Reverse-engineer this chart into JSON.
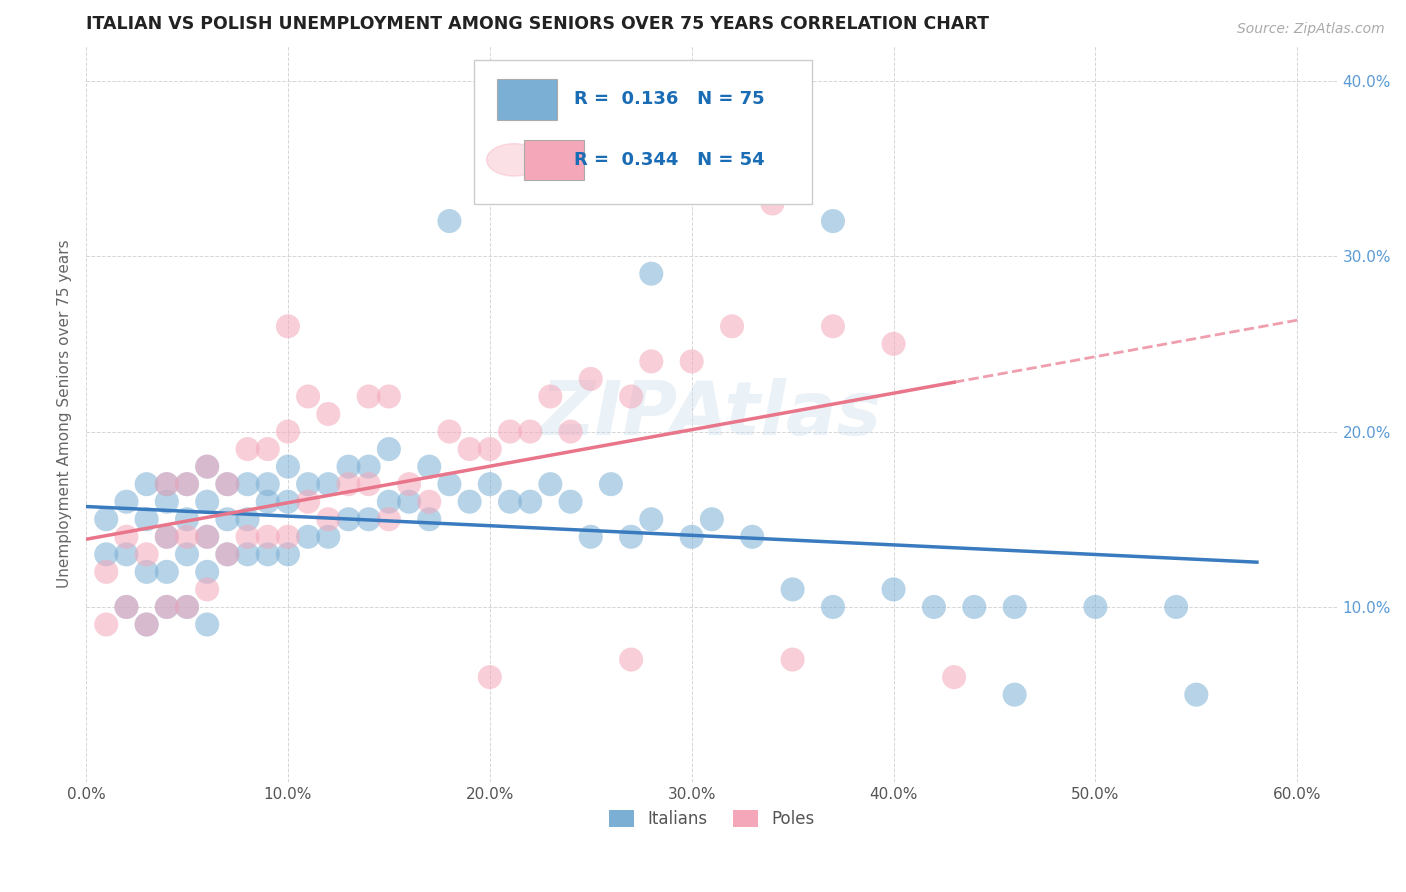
{
  "title": "ITALIAN VS POLISH UNEMPLOYMENT AMONG SENIORS OVER 75 YEARS CORRELATION CHART",
  "source": "Source: ZipAtlas.com",
  "ylabel": "Unemployment Among Seniors over 75 years",
  "xlim": [
    0.0,
    0.62
  ],
  "ylim": [
    0.0,
    0.42
  ],
  "xticks": [
    0.0,
    0.1,
    0.2,
    0.3,
    0.4,
    0.5,
    0.6
  ],
  "xtick_labels": [
    "0.0%",
    "10.0%",
    "20.0%",
    "30.0%",
    "40.0%",
    "50.0%",
    "60.0%"
  ],
  "yticks": [
    0.1,
    0.2,
    0.3,
    0.4
  ],
  "ytick_labels": [
    "10.0%",
    "20.0%",
    "30.0%",
    "40.0%"
  ],
  "italian_color": "#7bafd4",
  "polish_color": "#f4a7b9",
  "italian_line_color": "#3a7bbf",
  "polish_line_color": "#e8758a",
  "italian_R": 0.136,
  "italian_N": 75,
  "polish_R": 0.344,
  "polish_N": 54,
  "background_color": "#ffffff",
  "grid_color": "#cccccc",
  "ytick_color": "#5b9bd5",
  "italian_x": [
    0.01,
    0.01,
    0.02,
    0.02,
    0.02,
    0.03,
    0.03,
    0.03,
    0.03,
    0.04,
    0.04,
    0.04,
    0.04,
    0.04,
    0.05,
    0.05,
    0.05,
    0.05,
    0.06,
    0.06,
    0.06,
    0.06,
    0.06,
    0.07,
    0.07,
    0.07,
    0.08,
    0.08,
    0.08,
    0.09,
    0.09,
    0.09,
    0.1,
    0.1,
    0.1,
    0.11,
    0.11,
    0.12,
    0.12,
    0.13,
    0.13,
    0.14,
    0.14,
    0.15,
    0.15,
    0.16,
    0.17,
    0.17,
    0.18,
    0.19,
    0.2,
    0.21,
    0.22,
    0.23,
    0.24,
    0.25,
    0.26,
    0.27,
    0.28,
    0.3,
    0.31,
    0.33,
    0.35,
    0.37,
    0.4,
    0.42,
    0.44,
    0.46,
    0.5,
    0.54,
    0.18,
    0.28,
    0.37,
    0.46,
    0.55
  ],
  "italian_y": [
    0.13,
    0.15,
    0.1,
    0.13,
    0.16,
    0.09,
    0.12,
    0.15,
    0.17,
    0.1,
    0.12,
    0.14,
    0.16,
    0.17,
    0.1,
    0.13,
    0.15,
    0.17,
    0.09,
    0.12,
    0.14,
    0.16,
    0.18,
    0.13,
    0.15,
    0.17,
    0.13,
    0.15,
    0.17,
    0.13,
    0.16,
    0.17,
    0.13,
    0.16,
    0.18,
    0.14,
    0.17,
    0.14,
    0.17,
    0.15,
    0.18,
    0.15,
    0.18,
    0.16,
    0.19,
    0.16,
    0.15,
    0.18,
    0.17,
    0.16,
    0.17,
    0.16,
    0.16,
    0.17,
    0.16,
    0.14,
    0.17,
    0.14,
    0.15,
    0.14,
    0.15,
    0.14,
    0.11,
    0.1,
    0.11,
    0.1,
    0.1,
    0.1,
    0.1,
    0.1,
    0.32,
    0.29,
    0.32,
    0.05,
    0.05
  ],
  "polish_x": [
    0.01,
    0.01,
    0.02,
    0.02,
    0.03,
    0.03,
    0.04,
    0.04,
    0.04,
    0.05,
    0.05,
    0.05,
    0.06,
    0.06,
    0.06,
    0.07,
    0.07,
    0.08,
    0.08,
    0.09,
    0.09,
    0.1,
    0.1,
    0.11,
    0.11,
    0.12,
    0.12,
    0.13,
    0.14,
    0.15,
    0.15,
    0.16,
    0.17,
    0.18,
    0.19,
    0.2,
    0.21,
    0.22,
    0.23,
    0.24,
    0.25,
    0.27,
    0.28,
    0.3,
    0.32,
    0.34,
    0.37,
    0.4,
    0.1,
    0.14,
    0.2,
    0.27,
    0.35,
    0.43
  ],
  "polish_y": [
    0.09,
    0.12,
    0.1,
    0.14,
    0.09,
    0.13,
    0.1,
    0.14,
    0.17,
    0.1,
    0.14,
    0.17,
    0.11,
    0.14,
    0.18,
    0.13,
    0.17,
    0.14,
    0.19,
    0.14,
    0.19,
    0.14,
    0.2,
    0.16,
    0.22,
    0.15,
    0.21,
    0.17,
    0.17,
    0.15,
    0.22,
    0.17,
    0.16,
    0.2,
    0.19,
    0.19,
    0.2,
    0.2,
    0.22,
    0.2,
    0.23,
    0.22,
    0.24,
    0.24,
    0.26,
    0.33,
    0.26,
    0.25,
    0.26,
    0.22,
    0.06,
    0.07,
    0.07,
    0.06
  ]
}
